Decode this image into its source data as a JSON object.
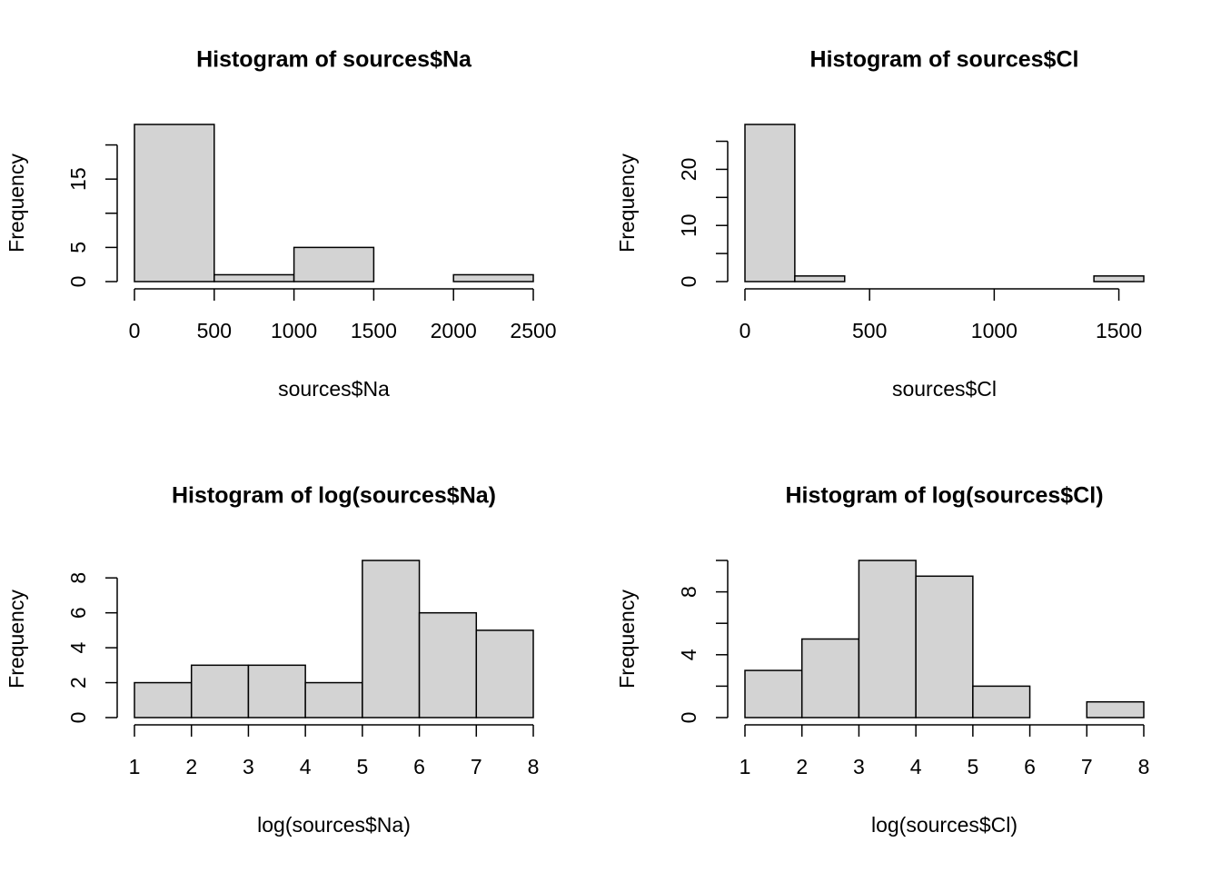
{
  "chart_data": [
    {
      "type": "histogram",
      "title": "Histogram of sources$Na",
      "x_label": "sources$Na",
      "y_label": "Frequency",
      "bins": [
        0,
        500,
        1000,
        1500,
        2000,
        2500
      ],
      "values": [
        23,
        1,
        5,
        0,
        1
      ],
      "color": "#d3d3d3",
      "xlim": [
        0,
        2500
      ],
      "xticks": [
        0,
        500,
        1000,
        1500,
        2000,
        2500
      ],
      "ylim": [
        0,
        23
      ],
      "yticks": [
        0,
        5,
        15
      ],
      "yminor_ticks": [
        10,
        20
      ]
    },
    {
      "type": "histogram",
      "title": "Histogram of sources$Cl",
      "x_label": "sources$Cl",
      "y_label": "Frequency",
      "bins": [
        0,
        200,
        400,
        600,
        800,
        1000,
        1200,
        1400,
        1600
      ],
      "values": [
        28,
        1,
        0,
        0,
        0,
        0,
        0,
        1
      ],
      "color": "#d3d3d3",
      "xlim": [
        0,
        1600
      ],
      "xticks": [
        0,
        500,
        1000,
        1500
      ],
      "ylim": [
        0,
        28
      ],
      "yticks": [
        0,
        10,
        20
      ],
      "yminor_ticks": [
        5,
        15,
        25
      ]
    },
    {
      "type": "histogram",
      "title": "Histogram of log(sources$Na)",
      "x_label": "log(sources$Na)",
      "y_label": "Frequency",
      "bins": [
        1,
        2,
        3,
        4,
        5,
        6,
        7,
        8
      ],
      "values": [
        2,
        3,
        3,
        2,
        9,
        6,
        5
      ],
      "color": "#d3d3d3",
      "xlim": [
        1,
        8
      ],
      "xticks": [
        1,
        2,
        3,
        4,
        5,
        6,
        7,
        8
      ],
      "ylim": [
        0,
        9
      ],
      "yticks": [
        0,
        2,
        4,
        6,
        8
      ],
      "yminor_ticks": []
    },
    {
      "type": "histogram",
      "title": "Histogram of log(sources$Cl)",
      "x_label": "log(sources$Cl)",
      "y_label": "Frequency",
      "bins": [
        1,
        2,
        3,
        4,
        5,
        6,
        7,
        8
      ],
      "values": [
        3,
        5,
        10,
        9,
        2,
        0,
        1
      ],
      "color": "#d3d3d3",
      "xlim": [
        1,
        8
      ],
      "xticks": [
        1,
        2,
        3,
        4,
        5,
        6,
        7,
        8
      ],
      "ylim": [
        0,
        10
      ],
      "yticks": [
        0,
        4,
        8
      ],
      "yminor_ticks": [
        2,
        6,
        10
      ]
    }
  ]
}
